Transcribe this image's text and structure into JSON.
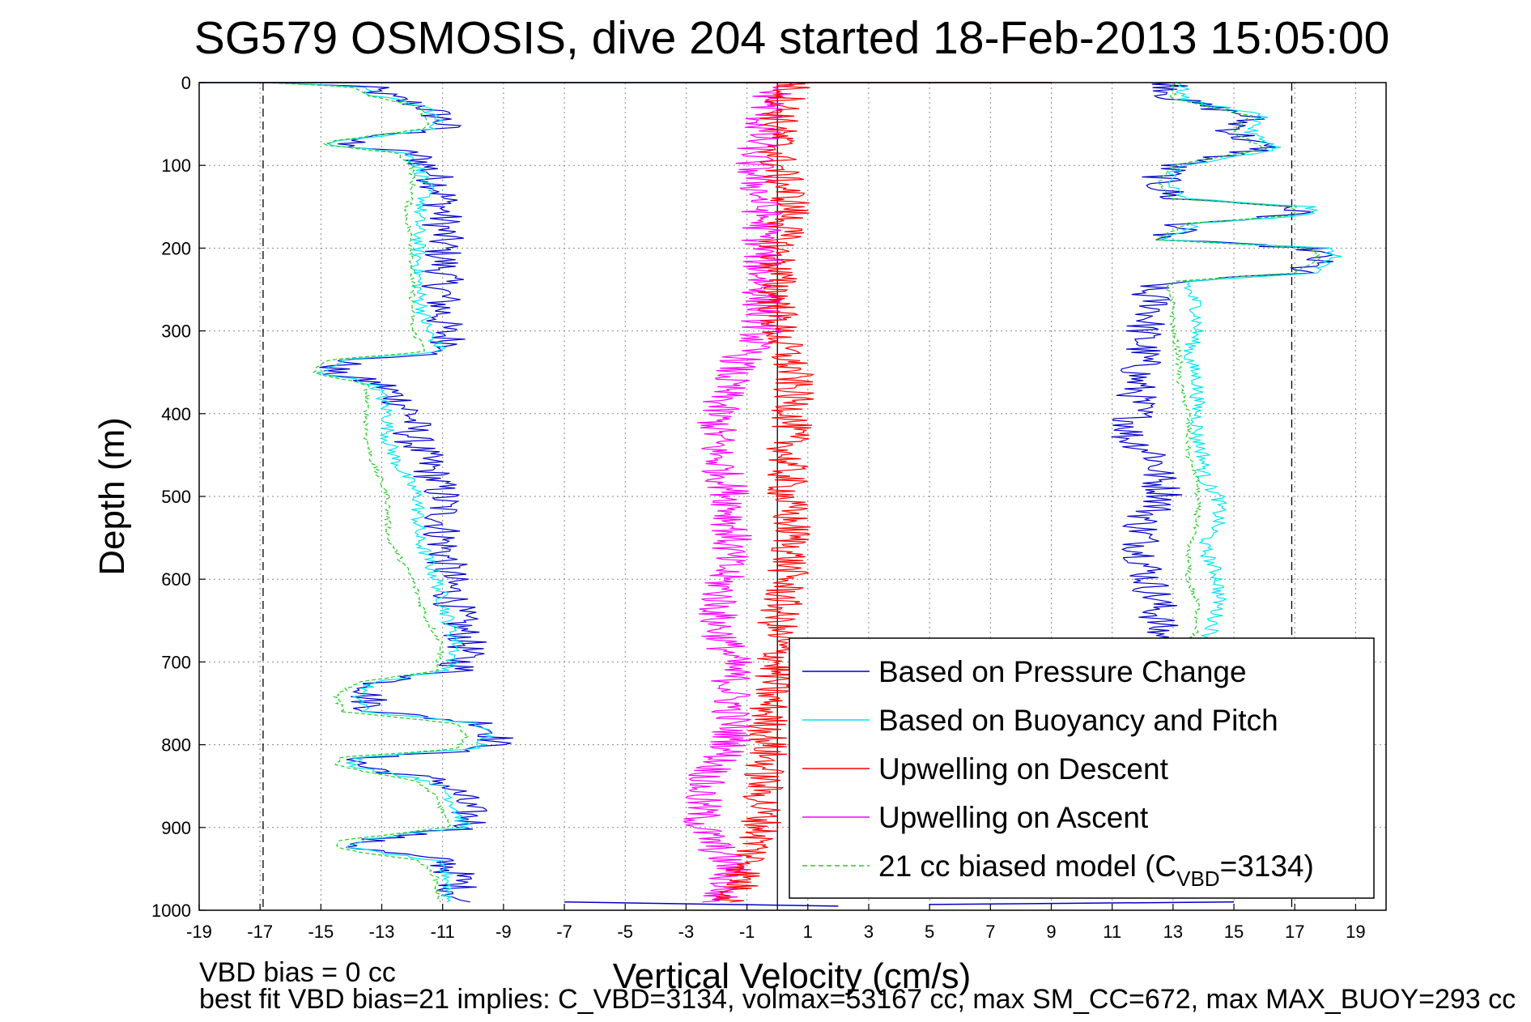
{
  "chart_data": {
    "type": "line",
    "title": "SG579 OSMOSIS, dive 204 started 18-Feb-2013 15:05:00",
    "xlabel": "Vertical Velocity (cm/s)",
    "ylabel": "Depth (m)",
    "xlim": [
      -19,
      20
    ],
    "ylim": [
      0,
      1000
    ],
    "y_reversed": true,
    "grid": true,
    "legend_position": "bottom-right",
    "x_ticks": [
      -19,
      -17,
      -15,
      -13,
      -11,
      -9,
      -7,
      -5,
      -3,
      -1,
      1,
      3,
      5,
      7,
      9,
      11,
      13,
      15,
      17,
      19
    ],
    "y_ticks": [
      0,
      100,
      200,
      300,
      400,
      500,
      600,
      700,
      800,
      900,
      1000
    ],
    "reference_lines_x": [
      -16.9,
      16.9
    ],
    "zero_line_x": 0,
    "series": [
      {
        "name": "Based on Pressure Change",
        "color": "#0000cc",
        "style": "solid",
        "descent": {
          "depth": [
            0,
            5,
            15,
            30,
            45,
            55,
            70,
            75,
            85,
            100,
            130,
            160,
            200,
            250,
            300,
            325,
            335,
            350,
            365,
            380,
            400,
            430,
            460,
            500,
            550,
            600,
            650,
            680,
            710,
            725,
            740,
            760,
            775,
            790,
            805,
            815,
            825,
            845,
            860,
            880,
            900,
            915,
            925,
            940,
            960,
            980,
            990
          ],
          "velocity": [
            -16.5,
            -13.5,
            -13,
            -11.5,
            -11,
            -11,
            -14,
            -14.5,
            -12,
            -11.5,
            -11,
            -11,
            -11,
            -11,
            -11,
            -10.5,
            -14,
            -14.8,
            -13,
            -12.5,
            -12,
            -12,
            -11.5,
            -11,
            -11,
            -10.8,
            -10.5,
            -10.2,
            -10.5,
            -13,
            -13.5,
            -13.2,
            -9.5,
            -9.2,
            -9.5,
            -13.5,
            -13.8,
            -11,
            -10.5,
            -10.2,
            -10,
            -13.5,
            -13.8,
            -11,
            -10.5,
            -10.5,
            -10.5
          ]
        },
        "ascent": {
          "depth": [
            0,
            20,
            40,
            60,
            80,
            100,
            120,
            140,
            150,
            160,
            170,
            180,
            190,
            200,
            210,
            220,
            230,
            240,
            250,
            270,
            300,
            330,
            360,
            400,
            430,
            450,
            480,
            500,
            530,
            560,
            600,
            630,
            660,
            680
          ],
          "velocity": [
            13,
            13,
            15.5,
            15,
            16,
            13,
            12.5,
            13,
            17,
            17,
            13.5,
            13,
            12.5,
            17.5,
            17.8,
            17.5,
            17,
            13,
            12,
            12.5,
            12,
            12,
            11.8,
            11.8,
            11.5,
            12.5,
            12.5,
            12.8,
            12,
            12,
            12.2,
            12.5,
            12.5,
            12.8
          ]
        }
      },
      {
        "name": "Based on Buoyancy and Pitch",
        "color": "#00e5ee",
        "style": "solid",
        "descent": {
          "depth": [
            0,
            5,
            15,
            30,
            45,
            55,
            70,
            75,
            85,
            100,
            130,
            160,
            200,
            250,
            300,
            325,
            335,
            350,
            365,
            380,
            400,
            430,
            460,
            500,
            550,
            600,
            650,
            680,
            710,
            725,
            740,
            760,
            775,
            790,
            805,
            815,
            825,
            845,
            860,
            880,
            900,
            915,
            925,
            940,
            960,
            980,
            990
          ],
          "velocity": [
            -16.5,
            -13.8,
            -13.3,
            -11.5,
            -11.2,
            -11.2,
            -14.2,
            -14.7,
            -12.2,
            -11.8,
            -11.5,
            -11.8,
            -11.8,
            -11.8,
            -11.5,
            -11,
            -14.3,
            -15,
            -13.2,
            -13,
            -12.8,
            -12.8,
            -12.5,
            -11.8,
            -11.8,
            -11.2,
            -10.8,
            -10.5,
            -10.8,
            -13.3,
            -13.8,
            -13.5,
            -9.8,
            -9.5,
            -9.8,
            -13.8,
            -14,
            -11.3,
            -10.8,
            -10.5,
            -10.3,
            -13.8,
            -14,
            -11.3,
            -10.8,
            -10.8,
            -10.8
          ]
        },
        "ascent": {
          "depth": [
            0,
            20,
            40,
            60,
            80,
            100,
            120,
            140,
            150,
            160,
            170,
            180,
            190,
            200,
            210,
            220,
            230,
            240,
            250,
            270,
            300,
            330,
            360,
            400,
            430,
            450,
            480,
            500,
            530,
            560,
            600,
            630,
            660,
            680
          ],
          "velocity": [
            13.3,
            13.3,
            16,
            15.5,
            16.5,
            13.3,
            12.8,
            13.3,
            17.5,
            17.5,
            13.8,
            13.3,
            12.8,
            18,
            18.3,
            18,
            17.5,
            13.5,
            13.5,
            13.8,
            13.8,
            13.5,
            13.8,
            13.8,
            13.8,
            14,
            14,
            14.5,
            14.5,
            14,
            14.5,
            14.5,
            14.3,
            14
          ]
        }
      },
      {
        "name": "Upwelling on Descent",
        "color": "#ff0000",
        "style": "solid",
        "depth": [
          0,
          50,
          100,
          150,
          200,
          250,
          300,
          350,
          400,
          450,
          500,
          550,
          600,
          650,
          700,
          750,
          800,
          850,
          900,
          950,
          990
        ],
        "velocity": [
          0.5,
          0,
          0,
          0.5,
          0,
          0,
          0,
          0.5,
          0.5,
          0.3,
          0.3,
          0.5,
          0.3,
          0,
          0,
          -0.3,
          -0.3,
          -0.5,
          -0.5,
          -1,
          -1.5
        ]
      },
      {
        "name": "Upwelling on Ascent",
        "color": "#ff00ff",
        "style": "solid",
        "depth": [
          0,
          50,
          100,
          150,
          200,
          250,
          300,
          350,
          400,
          450,
          500,
          550,
          600,
          650,
          700,
          750,
          800,
          850,
          900,
          950,
          990
        ],
        "velocity": [
          0,
          -0.5,
          -0.8,
          -0.5,
          -0.5,
          -0.5,
          -0.5,
          -1.5,
          -2,
          -2,
          -1.5,
          -1.5,
          -1.8,
          -2,
          -1.5,
          -1.5,
          -1.5,
          -2.5,
          -2.5,
          -1.5,
          -2
        ]
      },
      {
        "name": "21 cc biased model",
        "name_sub": "VBD",
        "name_value": "=3134",
        "color": "#22cc22",
        "style": "dashed",
        "descent": {
          "depth": [
            0,
            5,
            15,
            30,
            45,
            55,
            70,
            75,
            85,
            100,
            130,
            160,
            200,
            250,
            300,
            325,
            335,
            350,
            365,
            380,
            400,
            430,
            460,
            500,
            550,
            600,
            650,
            680,
            710,
            725,
            740,
            760,
            775,
            790,
            805,
            815,
            825,
            845,
            860,
            880,
            900,
            915,
            925,
            940,
            960,
            980,
            990
          ],
          "velocity": [
            -16.8,
            -14,
            -13.5,
            -11.8,
            -11.5,
            -11.5,
            -14.5,
            -15,
            -12.5,
            -12,
            -12,
            -12.2,
            -12,
            -12,
            -12,
            -11.5,
            -14.8,
            -15.3,
            -13.5,
            -13.5,
            -13.5,
            -13.5,
            -13.3,
            -12.8,
            -12.8,
            -12,
            -11.5,
            -11,
            -11.2,
            -13.8,
            -14.5,
            -14.3,
            -10.5,
            -10.2,
            -10.5,
            -14.3,
            -14.5,
            -11.8,
            -11.3,
            -11,
            -10.8,
            -14.3,
            -14.5,
            -11.8,
            -11.2,
            -11.2,
            -11
          ]
        },
        "ascent": {
          "depth": [
            0,
            20,
            40,
            60,
            80,
            100,
            120,
            140,
            150,
            160,
            170,
            180,
            190,
            200,
            210,
            220,
            230,
            240,
            250,
            270,
            300,
            330,
            360,
            400,
            430,
            450,
            480,
            500,
            530,
            560,
            600,
            630,
            660,
            680
          ],
          "velocity": [
            13,
            13,
            15.5,
            15,
            16,
            13,
            12.5,
            13,
            17,
            17,
            13.5,
            13,
            12.5,
            17.5,
            17.8,
            17.5,
            17,
            13,
            12.8,
            13,
            13,
            13.2,
            13.2,
            13.5,
            13.5,
            13.5,
            13.8,
            13.8,
            13.8,
            13.5,
            13.5,
            13.8,
            13.8,
            13.5
          ]
        }
      }
    ],
    "surface_spikes": [
      {
        "series": 0,
        "depth": [
          0,
          0
        ],
        "velocity": [
          -19,
          9
        ]
      },
      {
        "series": 2,
        "depth": [
          0,
          0
        ],
        "velocity": [
          -1,
          9
        ]
      },
      {
        "series": 0,
        "depth": [
          990,
          995
        ],
        "velocity": [
          -7,
          2
        ]
      },
      {
        "series": 0,
        "depth": [
          993,
          990
        ],
        "velocity": [
          5,
          15
        ]
      }
    ],
    "footer_left_1": "VBD bias = 0 cc",
    "footer_left_2": "best fit VBD bias=21 implies: C_VBD=3134, volmax=53167 cc, max SM_CC=672, max MAX_BUOY=293 cc"
  }
}
